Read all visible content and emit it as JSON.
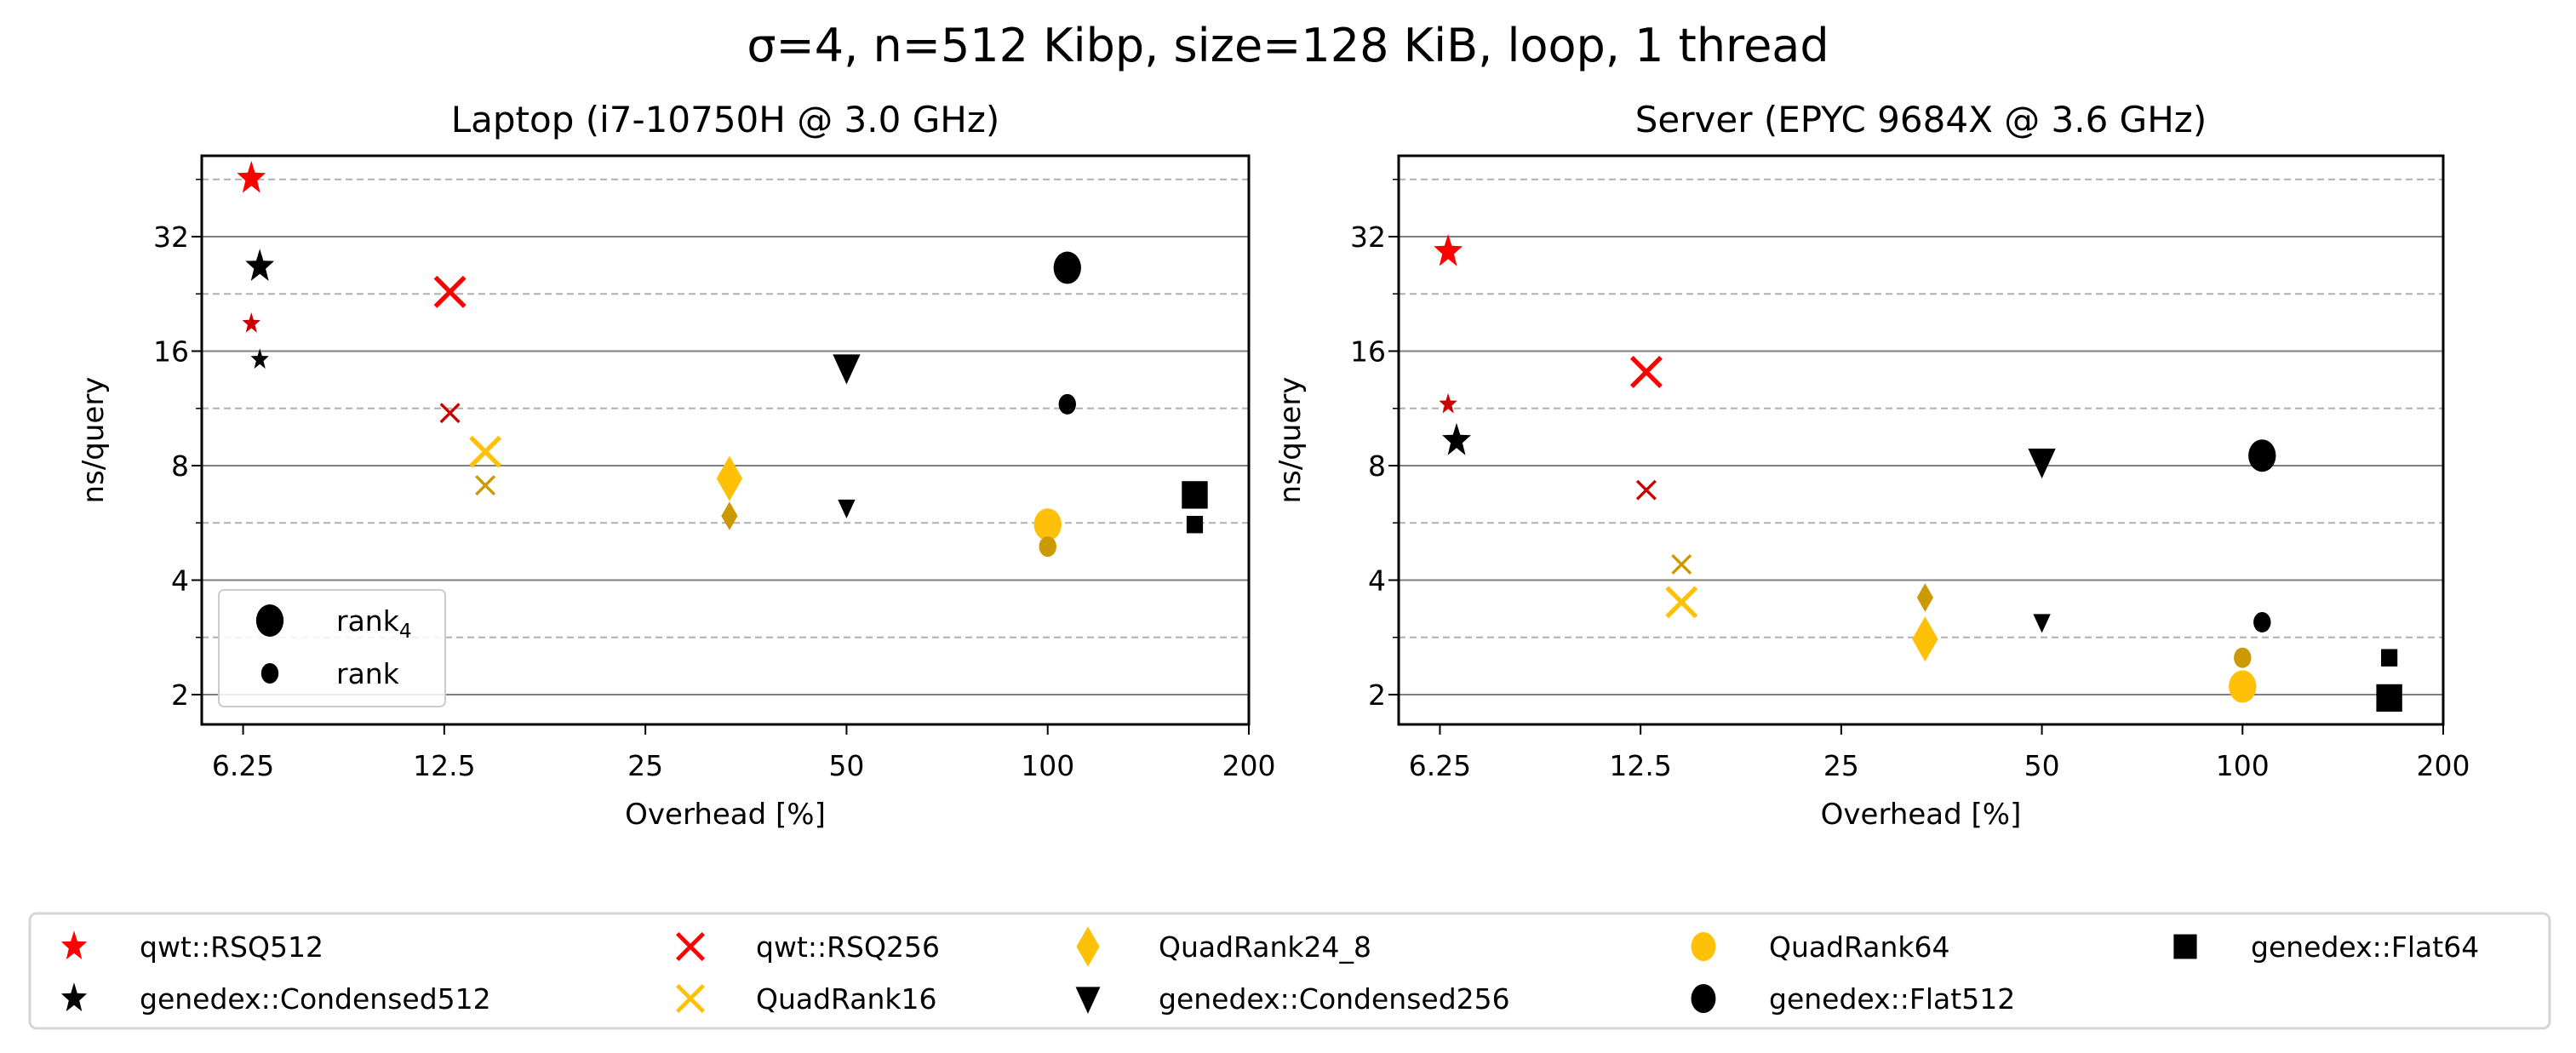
{
  "title": "σ=4, n=512 Kibp, size=128 KiB, loop, 1 thread",
  "colors": {
    "red": "#ff0000",
    "red_dark": "#cc0000",
    "yellow": "#ffc107",
    "yellow_dark": "#cc9a00",
    "black": "#000000"
  },
  "inner_legend": [
    {
      "label": "rank",
      "sub": "4",
      "size": "large"
    },
    {
      "label": "rank",
      "sub": "",
      "size": "small"
    }
  ],
  "chart_data": [
    {
      "type": "scatter",
      "title": "Laptop (i7-10750H @ 3.0 GHz)",
      "xlabel": "Overhead [%]",
      "ylabel": "ns/query",
      "xscale": "log2",
      "yscale": "log2",
      "xlim": [
        5.42,
        200
      ],
      "ylim": [
        1.67,
        52.2
      ],
      "xticks": [
        "6.25",
        "12.5",
        "25",
        "50",
        "100",
        "200"
      ],
      "yticks": [
        "2",
        "4",
        "8",
        "16",
        "32"
      ],
      "grid": true,
      "series": [
        {
          "name": "qwt::RSQ512",
          "marker": "star",
          "color": "red",
          "x": 6.43,
          "rank4": 45.5,
          "rank": 18.9
        },
        {
          "name": "genedex::Condensed512",
          "marker": "star",
          "color": "black",
          "x": 6.62,
          "rank4": 26.7,
          "rank": 15.2
        },
        {
          "name": "qwt::RSQ256",
          "marker": "x",
          "color": "red",
          "x": 12.75,
          "rank4": 22.9,
          "rank": 11.0
        },
        {
          "name": "QuadRank16",
          "marker": "x",
          "color": "yellow",
          "x": 14.4,
          "rank4": 8.7,
          "rank": 7.1
        },
        {
          "name": "QuadRank24_8",
          "marker": "diamond",
          "color": "yellow",
          "x": 33.4,
          "rank4": 7.4,
          "rank": 5.9
        },
        {
          "name": "genedex::Condensed256",
          "marker": "triangle-down",
          "color": "black",
          "x": 50,
          "rank4": 14.5,
          "rank": 6.2
        },
        {
          "name": "QuadRank64",
          "marker": "circle",
          "color": "yellow",
          "x": 100,
          "rank4": 5.6,
          "rank": 4.9
        },
        {
          "name": "genedex::Flat512",
          "marker": "circle",
          "color": "black",
          "x": 107,
          "rank4": 26.5,
          "rank": 11.6
        },
        {
          "name": "genedex::Flat64",
          "marker": "square",
          "color": "black",
          "x": 166,
          "rank4": 6.7,
          "rank": 5.6
        }
      ]
    },
    {
      "type": "scatter",
      "title": "Server (EPYC 9684X @ 3.6 GHz)",
      "xlabel": "Overhead [%]",
      "ylabel": "ns/query",
      "xscale": "log2",
      "yscale": "log2",
      "xlim": [
        5.42,
        200
      ],
      "ylim": [
        1.67,
        52.2
      ],
      "xticks": [
        "6.25",
        "12.5",
        "25",
        "50",
        "100",
        "200"
      ],
      "yticks": [
        "2",
        "4",
        "8",
        "16",
        "32"
      ],
      "grid": true,
      "series": [
        {
          "name": "qwt::RSQ512",
          "marker": "star",
          "color": "red",
          "x": 6.43,
          "rank4": 29.2,
          "rank": 11.6
        },
        {
          "name": "genedex::Condensed512",
          "marker": "star",
          "color": "black",
          "x": 6.62,
          "rank4": 9.3,
          "rank": 9.2
        },
        {
          "name": "qwt::RSQ256",
          "marker": "x",
          "color": "red",
          "x": 12.75,
          "rank4": 14.1,
          "rank": 6.9
        },
        {
          "name": "QuadRank16",
          "marker": "x",
          "color": "yellow",
          "x": 14.4,
          "rank4": 3.5,
          "rank": 4.4
        },
        {
          "name": "QuadRank24_8",
          "marker": "diamond",
          "color": "yellow",
          "x": 33.4,
          "rank4": 2.8,
          "rank": 3.6
        },
        {
          "name": "genedex::Condensed256",
          "marker": "triangle-down",
          "color": "black",
          "x": 50,
          "rank4": 8.2,
          "rank": 3.1
        },
        {
          "name": "QuadRank64",
          "marker": "circle",
          "color": "yellow",
          "x": 100,
          "rank4": 2.1,
          "rank": 2.5
        },
        {
          "name": "genedex::Flat512",
          "marker": "circle",
          "color": "black",
          "x": 107,
          "rank4": 8.5,
          "rank": 3.1
        },
        {
          "name": "genedex::Flat64",
          "marker": "square",
          "color": "black",
          "x": 166,
          "rank4": 1.96,
          "rank": 2.5
        }
      ]
    }
  ],
  "legend": [
    {
      "label": "qwt::RSQ512",
      "marker": "star",
      "color": "red"
    },
    {
      "label": "genedex::Condensed512",
      "marker": "star",
      "color": "black"
    },
    {
      "label": "qwt::RSQ256",
      "marker": "x",
      "color": "red"
    },
    {
      "label": "QuadRank16",
      "marker": "x",
      "color": "yellow"
    },
    {
      "label": "QuadRank24_8",
      "marker": "diamond",
      "color": "yellow"
    },
    {
      "label": "genedex::Condensed256",
      "marker": "triangle-down",
      "color": "black"
    },
    {
      "label": "QuadRank64",
      "marker": "circle",
      "color": "yellow"
    },
    {
      "label": "genedex::Flat512",
      "marker": "circle",
      "color": "black"
    },
    {
      "label": "genedex::Flat64",
      "marker": "square",
      "color": "black"
    }
  ]
}
